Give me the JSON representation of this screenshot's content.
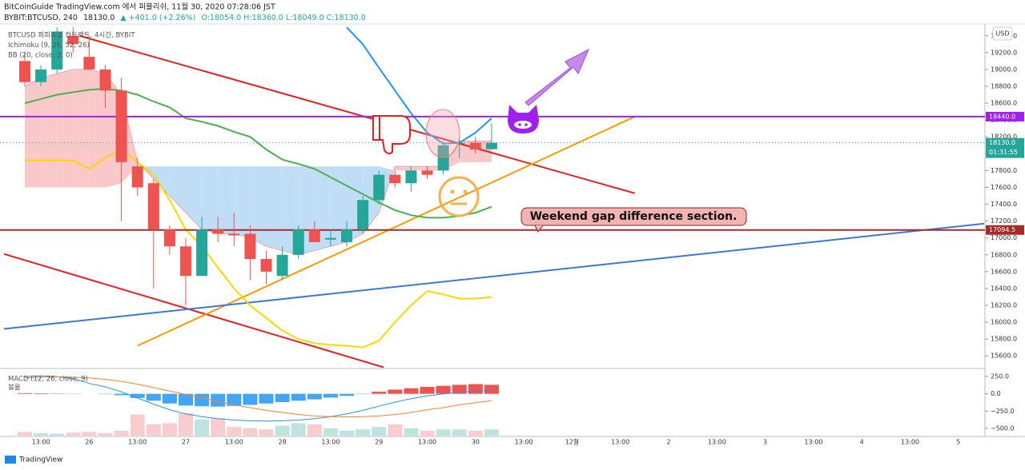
{
  "header": {
    "published": "BitCoinGuide TradingView.com 에서 퍼블리쉬, 11월 30, 2020 07:28:06 JST",
    "symbol": "BYBIT:BTCUSD, 240",
    "last": "18130.0",
    "change": "▲ +401.0 (+2.26%)",
    "ohlc": "O:18054.0 H:18360.0 L:18049.0 C:18130.0"
  },
  "footer": {
    "brand": "TradingView"
  },
  "chart_data": [
    {
      "type": "candlestick",
      "legend": [
        "BTCUSD 퍼피츄얼 컨트랙트, 4시간, BYBIT",
        "Ichimoku (9, 26, 52, 26)",
        "BB (20, close, 2, 0)"
      ],
      "currency": "USD",
      "annotation": "Weekend gap difference section.",
      "categories": [
        null,
        "13:00",
        null,
        null,
        "26",
        null,
        null,
        "13:00",
        null,
        null,
        "27",
        null,
        null,
        "13:00",
        null,
        null,
        "28",
        null,
        null,
        "13:00",
        null,
        null,
        "29",
        null,
        null,
        "13:00",
        null,
        null,
        "30",
        null,
        null,
        "13:00",
        null,
        null,
        "12월",
        null,
        null,
        "13:00",
        null,
        null,
        "2",
        null,
        null,
        "13:00",
        null,
        null,
        "3",
        null,
        null,
        "13:00",
        null,
        null,
        "4",
        null,
        null,
        "13:00",
        null,
        null,
        "5",
        null
      ],
      "open": [
        19100,
        18850,
        19000,
        19400,
        19150,
        19000,
        18750,
        17850,
        17650,
        17100,
        16900,
        16550,
        17100,
        17050,
        17050,
        16750,
        16550,
        16800,
        17100,
        16980,
        16950,
        17100,
        17450,
        17750,
        17650,
        17800,
        17800,
        18120,
        18130,
        18054,
        null,
        null,
        null,
        null,
        null,
        null,
        null,
        null,
        null,
        null,
        null,
        null,
        null,
        null,
        null,
        null,
        null,
        null,
        null,
        null,
        null,
        null,
        null,
        null,
        null,
        null,
        null,
        null,
        null,
        null
      ],
      "high": [
        19200,
        19050,
        19500,
        19500,
        19400,
        19050,
        18900,
        17950,
        17700,
        17150,
        17000,
        17250,
        17250,
        17300,
        17150,
        16850,
        16900,
        17150,
        17200,
        17100,
        17200,
        17500,
        17800,
        17800,
        17850,
        17850,
        18150,
        18200,
        18200,
        18360,
        null,
        null,
        null,
        null,
        null,
        null,
        null,
        null,
        null,
        null,
        null,
        null,
        null,
        null,
        null,
        null,
        null,
        null,
        null,
        null,
        null,
        null,
        null,
        null,
        null,
        null,
        null,
        null,
        null,
        null
      ],
      "low": [
        18800,
        18800,
        18950,
        19200,
        19000,
        18550,
        17200,
        17500,
        16400,
        16800,
        16200,
        16550,
        16950,
        16900,
        16500,
        16450,
        16500,
        16750,
        16950,
        16900,
        16900,
        17050,
        17400,
        17600,
        17550,
        17700,
        17750,
        17950,
        18000,
        18049,
        null,
        null,
        null,
        null,
        null,
        null,
        null,
        null,
        null,
        null,
        null,
        null,
        null,
        null,
        null,
        null,
        null,
        null,
        null,
        null,
        null,
        null,
        null,
        null,
        null,
        null,
        null,
        null,
        null,
        null
      ],
      "close": [
        18850,
        19000,
        19450,
        19300,
        19000,
        18750,
        17900,
        17600,
        17100,
        16900,
        16550,
        17100,
        17050,
        17030,
        16750,
        16600,
        16800,
        17100,
        16950,
        17000,
        17100,
        17450,
        17750,
        17650,
        17800,
        17750,
        18100,
        18130,
        18050,
        18130,
        null,
        null,
        null,
        null,
        null,
        null,
        null,
        null,
        null,
        null,
        null,
        null,
        null,
        null,
        null,
        null,
        null,
        null,
        null,
        null,
        null,
        null,
        null,
        null,
        null,
        null,
        null,
        null,
        null,
        null
      ],
      "up_color": "#26a69a",
      "down_color": "#ef5350",
      "cloud": {
        "up_color": "#f7b5b5",
        "down_color": "#a9d3f2",
        "span_a": [
          18800,
          18900,
          18950,
          19000,
          19000,
          18950,
          18700,
          17900,
          17700,
          17500,
          17300,
          17100,
          17050,
          17050,
          17000,
          16900,
          16850,
          16800,
          16850,
          16900,
          16950,
          17050,
          17300,
          17850,
          17850,
          17850,
          17850,
          18150,
          18150,
          18150,
          null,
          null,
          null,
          null,
          null,
          null,
          null,
          null,
          null,
          null,
          null,
          null,
          null,
          null,
          null,
          null,
          null,
          null,
          null,
          null,
          null,
          null,
          null,
          null,
          null,
          null,
          null,
          null,
          null,
          null
        ],
        "span_b": [
          17600,
          17600,
          17600,
          17600,
          17600,
          17600,
          17650,
          17850,
          17850,
          17850,
          17850,
          17850,
          17850,
          17850,
          17850,
          17850,
          17850,
          17850,
          17850,
          17850,
          17850,
          17850,
          17850,
          17800,
          17800,
          17800,
          17800,
          17900,
          17900,
          17900,
          null,
          null,
          null,
          null,
          null,
          null,
          null,
          null,
          null,
          null,
          null,
          null,
          null,
          null,
          null,
          null,
          null,
          null,
          null,
          null,
          null,
          null,
          null,
          null,
          null,
          null,
          null,
          null,
          null,
          null
        ]
      },
      "series": [
        {
          "color": "#4caf50",
          "values": [
            18600,
            18650,
            18700,
            18730,
            18760,
            18770,
            18750,
            18700,
            18620,
            18550,
            18420,
            18380,
            18330,
            18260,
            18200,
            18050,
            17930,
            17880,
            17820,
            17720,
            17620,
            17520,
            17420,
            17330,
            17270,
            17240,
            17240,
            17260,
            17300,
            17370,
            null,
            null,
            null,
            null,
            null,
            null,
            null,
            null,
            null,
            null,
            null,
            null,
            null,
            null,
            null,
            null,
            null,
            null,
            null,
            null,
            null,
            null,
            null,
            null,
            null,
            null,
            null,
            null,
            null,
            null
          ]
        },
        {
          "color": "#ffd600",
          "values": [
            17920,
            17920,
            17920,
            17920,
            17820,
            17950,
            18050,
            17900,
            17750,
            17450,
            17100,
            16900,
            16650,
            16400,
            16200,
            16050,
            15900,
            15800,
            15750,
            15730,
            15720,
            15700,
            15780,
            16000,
            16200,
            16370,
            16330,
            16280,
            16280,
            16300,
            null,
            null,
            null,
            null,
            null,
            null,
            null,
            null,
            null,
            null,
            null,
            null,
            null,
            null,
            null,
            null,
            null,
            null,
            null,
            null,
            null,
            null,
            null,
            null,
            null,
            null,
            null,
            null,
            null,
            null
          ]
        },
        {
          "color": "#2196f3",
          "values": [
            null,
            null,
            null,
            null,
            null,
            null,
            null,
            null,
            null,
            null,
            null,
            null,
            null,
            null,
            null,
            null,
            null,
            null,
            null,
            null,
            19500,
            19300,
            19020,
            18750,
            18480,
            18250,
            18120,
            18130,
            18250,
            18420,
            null,
            null,
            null,
            null,
            null,
            null,
            null,
            null,
            null,
            null,
            null,
            null,
            null,
            null,
            null,
            null,
            null,
            null,
            null,
            null,
            null,
            null,
            null,
            null,
            null,
            null,
            null,
            null,
            null,
            null
          ]
        }
      ],
      "trendlines": [
        {
          "color": "#e81e1e",
          "points": [
            [
              3.4,
              19400
            ],
            [
              37.9,
              17530
            ]
          ]
        },
        {
          "color": "#e81e1e",
          "points": [
            [
              -1.3,
              16810
            ],
            [
              22.3,
              15464
            ]
          ]
        },
        {
          "color": "#ff9800",
          "points": [
            [
              7,
              15720
            ],
            [
              37.9,
              18440
            ]
          ]
        },
        {
          "color": "#3c78d8",
          "points": [
            [
              -1.3,
              15920
            ],
            [
              59.6,
              17170
            ]
          ]
        }
      ],
      "levels": [
        {
          "value": 18440,
          "label": "18440.0",
          "color": "#a020f0"
        },
        {
          "value": 17094.5,
          "label": "17094.5",
          "color": "#a52a2a"
        }
      ],
      "current": {
        "value": 18130,
        "label": "18130.0",
        "countdown": "01:31:55",
        "color": "#26a69a"
      },
      "ylim": [
        15460,
        19540
      ],
      "yticks": [
        {
          "value": 19400,
          "label": "19400.0"
        },
        {
          "value": 19200,
          "label": "19200.0"
        },
        {
          "value": 19000,
          "label": "19000.0"
        },
        {
          "value": 18800,
          "label": "18800.0"
        },
        {
          "value": 18600,
          "label": "18600.0"
        },
        {
          "value": 18400,
          "label": "18400.0"
        },
        {
          "value": 18200,
          "label": "18200.0"
        },
        {
          "value": 18000,
          "label": "18000.0"
        },
        {
          "value": 17800,
          "label": "17800.0"
        },
        {
          "value": 17600,
          "label": "17600.0"
        },
        {
          "value": 17400,
          "label": "17400.0"
        },
        {
          "value": 17200,
          "label": "17200.0"
        },
        {
          "value": 17000,
          "label": "17000.0"
        },
        {
          "value": 16800,
          "label": "16800.0"
        },
        {
          "value": 16600,
          "label": "16600.0"
        },
        {
          "value": 16400,
          "label": "16400.0"
        },
        {
          "value": 16200,
          "label": "16200.0"
        },
        {
          "value": 16000,
          "label": "16000.0"
        },
        {
          "value": 15800,
          "label": "15800.0"
        },
        {
          "value": 15600,
          "label": "15600.0"
        }
      ]
    },
    {
      "type": "macd",
      "legend": [
        "MACD (12, 26, close, 9)",
        "볼륨"
      ],
      "histogram": [
        10,
        8,
        5,
        3,
        0,
        -5,
        -20,
        -60,
        -100,
        -140,
        -170,
        -180,
        -185,
        -175,
        -160,
        -140,
        -120,
        -100,
        -80,
        -55,
        -30,
        -5,
        30,
        60,
        80,
        100,
        115,
        130,
        140,
        130
      ],
      "up_color": "#ef5350",
      "down_color": "#42a5f5",
      "macd": {
        "color": "#2196f3",
        "values": [
          250,
          260,
          250,
          220,
          150,
          100,
          30,
          -60,
          -150,
          -230,
          -290,
          -330,
          -360,
          -380,
          -390,
          -395,
          -390,
          -380,
          -360,
          -330,
          -290,
          -240,
          -180,
          -120,
          -70,
          -30,
          0,
          20,
          40,
          50
        ]
      },
      "signal": {
        "color": "#ff7f27",
        "values": [
          230,
          240,
          245,
          240,
          230,
          210,
          180,
          140,
          90,
          40,
          -10,
          -60,
          -110,
          -160,
          -200,
          -240,
          -270,
          -300,
          -320,
          -330,
          -335,
          -330,
          -320,
          -300,
          -270,
          -230,
          -200,
          -160,
          -130,
          -100
        ]
      },
      "volume": [
        15,
        10,
        8,
        12,
        15,
        10,
        20,
        85,
        45,
        50,
        90,
        65,
        70,
        35,
        30,
        25,
        40,
        50,
        45,
        30,
        20,
        25,
        35,
        45,
        30,
        20,
        25,
        25,
        20,
        25
      ],
      "ylim": [
        -605,
        320
      ],
      "yticks": [
        {
          "value": 250,
          "label": "250.0"
        },
        {
          "value": 0,
          "label": "0.0"
        },
        {
          "value": -250,
          "label": "−250.0"
        },
        {
          "value": -500,
          "label": "−500.0"
        }
      ]
    }
  ]
}
